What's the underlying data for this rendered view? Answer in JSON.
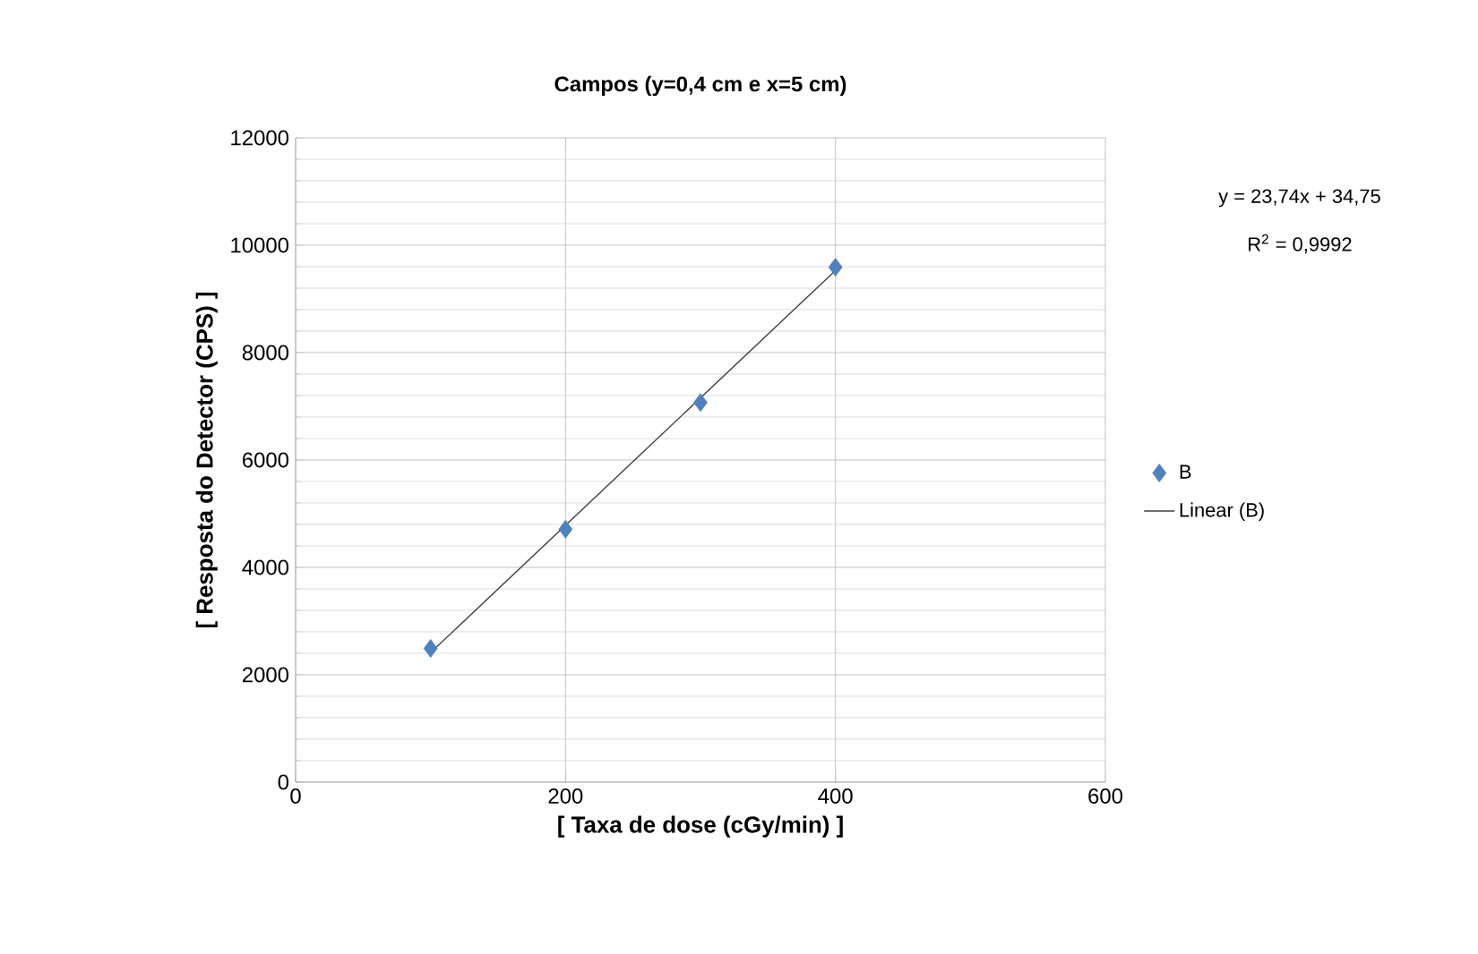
{
  "chart_data": {
    "type": "scatter",
    "title": "Campos (y=0,4 cm e x=5 cm)",
    "xlabel": "[ Taxa de dose (cGy/min) ]",
    "ylabel": "[ Resposta do Detector (CPS) ]",
    "xlim": [
      0,
      600
    ],
    "xticks": [
      0,
      200,
      400,
      600
    ],
    "ylim": [
      0,
      12000
    ],
    "yticks": [
      0,
      2000,
      4000,
      6000,
      8000,
      10000,
      12000
    ],
    "grid": true,
    "legend": "right",
    "annotations": [
      "y = 23,74x + 34,75",
      "R$^{2}$ = 0,9992"
    ],
    "series": [
      {
        "name": "B",
        "marker": "diamond",
        "color": "#4f81bd",
        "x": [
          100,
          200,
          300,
          400
        ],
        "values": [
          2490,
          4710,
          7070,
          9590
        ]
      },
      {
        "name": "Linear (B)",
        "type": "line",
        "marker": "none",
        "line_style": "solid",
        "color": "#404040",
        "x": [
          100,
          400
        ],
        "values": [
          2410,
          9530
        ]
      }
    ]
  }
}
